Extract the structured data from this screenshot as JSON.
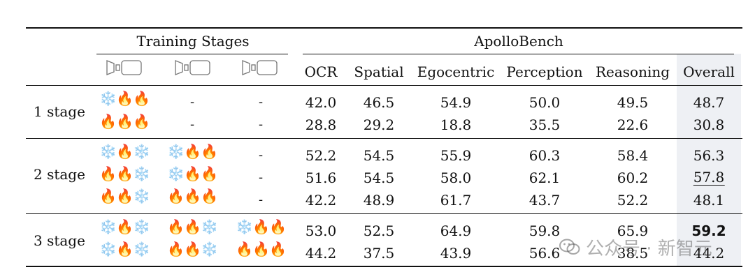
{
  "header": {
    "training_stages": "Training Stages",
    "apollobench": "ApolloBench",
    "metrics": [
      "OCR",
      "Spatial",
      "Egocentric",
      "Perception",
      "Reasoning",
      "Overall"
    ]
  },
  "groups": [
    {
      "label": "1 stage",
      "rows": [
        {
          "stages": [
            "❄️🔥🔥",
            "-",
            "-"
          ],
          "scores": [
            "42.0",
            "46.5",
            "54.9",
            "50.0",
            "49.5",
            "48.7"
          ]
        },
        {
          "stages": [
            "🔥🔥🔥",
            "-",
            "-"
          ],
          "scores": [
            "28.8",
            "29.2",
            "18.8",
            "35.5",
            "22.6",
            "30.8"
          ]
        }
      ]
    },
    {
      "label": "2 stage",
      "rows": [
        {
          "stages": [
            "❄️🔥❄️",
            "❄️🔥🔥",
            "-"
          ],
          "scores": [
            "52.2",
            "54.5",
            "55.9",
            "60.3",
            "58.4",
            "56.3"
          ]
        },
        {
          "stages": [
            "🔥🔥❄️",
            "❄️🔥🔥",
            "-"
          ],
          "scores": [
            "51.6",
            "54.5",
            "58.0",
            "62.1",
            "60.2",
            "57.8"
          ]
        },
        {
          "stages": [
            "🔥🔥❄️",
            "🔥🔥🔥",
            "-"
          ],
          "scores": [
            "42.2",
            "48.9",
            "61.7",
            "43.7",
            "52.2",
            "48.1"
          ]
        }
      ]
    },
    {
      "label": "3 stage",
      "rows": [
        {
          "stages": [
            "❄️🔥❄️",
            "🔥🔥❄️",
            "❄️🔥🔥"
          ],
          "scores": [
            "53.0",
            "52.5",
            "64.9",
            "59.8",
            "65.9",
            "59.2"
          ]
        },
        {
          "stages": [
            "❄️🔥❄️",
            "🔥🔥❄️",
            "🔥🔥🔥"
          ],
          "scores": [
            "44.2",
            "37.5",
            "43.9",
            "56.6",
            "38.5",
            "44.2"
          ]
        }
      ]
    }
  ],
  "watermark": {
    "text": "公众号 · 新智元"
  }
}
